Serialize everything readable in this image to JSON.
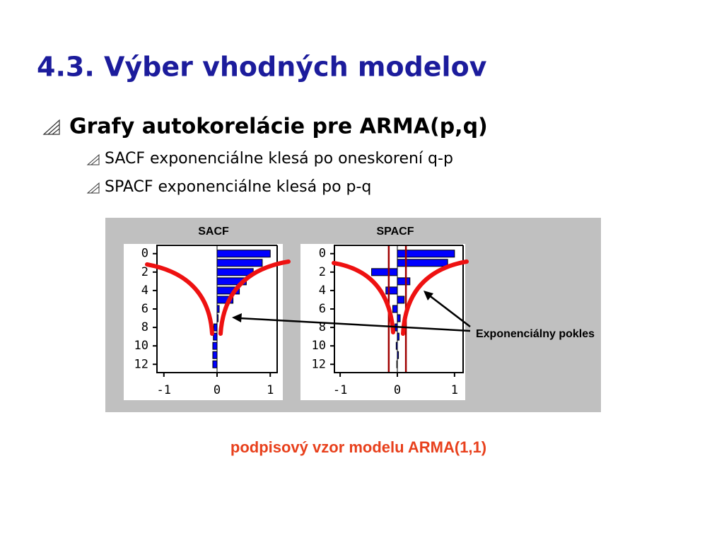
{
  "header": {
    "title": "4.3. Výber vhodných modelov"
  },
  "bullets": {
    "main": "Grafy autokorelácie pre ARMA(p,q)",
    "sub": [
      "SACF exponenciálne klesá po oneskorení q-p",
      "SPACF exponenciálne klesá po p-q"
    ]
  },
  "annotation": "Exponenciálny pokles",
  "caption": "podpisový vzor modelu ARMA(1,1)",
  "chart_data": [
    {
      "type": "bar",
      "orientation": "horizontal",
      "title": "SACF",
      "color": "#0000ff",
      "categories": [
        0,
        1,
        2,
        3,
        4,
        5,
        6,
        7,
        8,
        9,
        10,
        11,
        12
      ],
      "values": [
        1.0,
        0.85,
        0.68,
        0.55,
        0.42,
        0.3,
        0.04,
        0.02,
        -0.06,
        -0.07,
        -0.08,
        -0.08,
        -0.08
      ],
      "xlim": [
        -1.13,
        1.13
      ],
      "xticks": [
        -1,
        0,
        1
      ],
      "ylim": [
        -0.9,
        12.9
      ],
      "yticks": [
        0,
        2,
        4,
        6,
        8,
        10,
        12
      ]
    },
    {
      "type": "bar",
      "orientation": "horizontal",
      "title": "SPACF",
      "color": "#0000ff",
      "categories": [
        0,
        1,
        2,
        3,
        4,
        5,
        6,
        7,
        8,
        9,
        10,
        11,
        12
      ],
      "values": [
        1.0,
        0.88,
        -0.45,
        0.22,
        -0.2,
        0.12,
        -0.08,
        0.05,
        -0.04,
        0.03,
        -0.02,
        0.02,
        -0.01
      ],
      "limits": [
        -0.15,
        0.15
      ],
      "limits_color": "#a00000",
      "xlim": [
        -1.1,
        1.15
      ],
      "xticks": [
        -1,
        0,
        1
      ],
      "ylim": [
        -0.9,
        12.9
      ],
      "yticks": [
        0,
        2,
        4,
        6,
        8,
        10,
        12
      ]
    }
  ]
}
